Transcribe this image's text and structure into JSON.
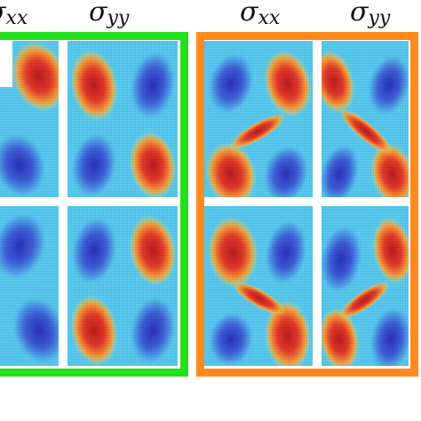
{
  "labels": {
    "green_left": "xx",
    "green_right": "yy",
    "orange_left": "xx",
    "orange_right": "yy"
  },
  "symbol": "σ",
  "colors": {
    "green_frame": "#22e01c",
    "orange_frame": "#ff8a1c",
    "high": "#d9262b",
    "low": "#3a4ed0",
    "mid": "#58c8ee",
    "transition": "#f2e24a"
  }
}
